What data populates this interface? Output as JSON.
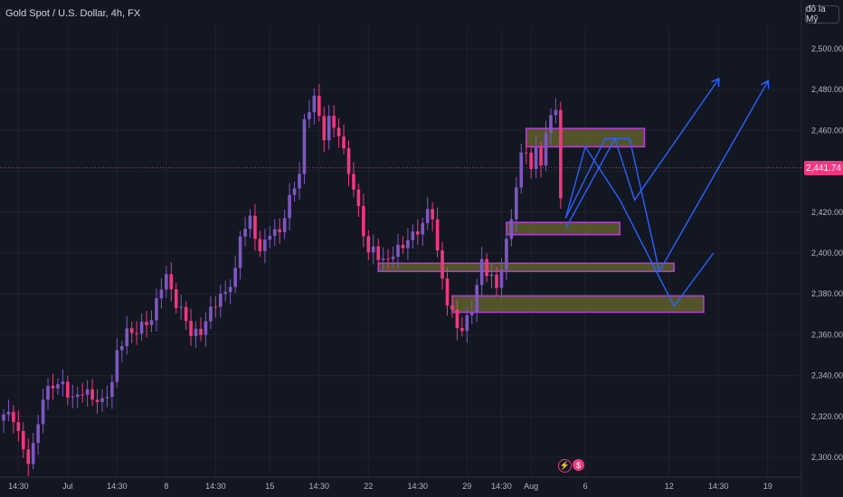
{
  "header": {
    "symbol_title": "Gold Spot / U.S. Dollar, 4h, FX"
  },
  "currency_button": {
    "label": "đô la Mỹ"
  },
  "current_price": {
    "label": "2,441.74",
    "value": 2441.74,
    "color": "#f23680"
  },
  "events": [
    {
      "icon": "lightning-icon",
      "color": "#f23680"
    },
    {
      "icon": "us-flag-icon",
      "color": "#f23680"
    }
  ],
  "colors": {
    "background": "#131722",
    "bull": "#7e57c2",
    "bear": "#f23680",
    "zone_fill": "#6b6a2e",
    "zone_border": "#b73dd9",
    "projection": "#2962ff",
    "grid": "#1e222d",
    "text": "#b2b5be"
  },
  "chart_data": {
    "type": "candlestick",
    "title": "Gold Spot / U.S. Dollar, 4h, FX",
    "ylim": [
      2295,
      2515
    ],
    "y_ticks": [
      2300,
      2320,
      2340,
      2360,
      2380,
      2400,
      2420,
      2440,
      2460,
      2480,
      2500
    ],
    "y_tick_labels": [
      "2,300.00",
      "2,320.00",
      "2,340.00",
      "2,360.00",
      "2,380.00",
      "2,400.00",
      "2,420.00",
      "2,440.00",
      "2,460.00",
      "2,480.00",
      "2,500.00"
    ],
    "x_ticks": [
      {
        "label": "14:30",
        "index": 3
      },
      {
        "label": "Jul",
        "index": 13
      },
      {
        "label": "14:30",
        "index": 23
      },
      {
        "label": "8",
        "index": 33
      },
      {
        "label": "14:30",
        "index": 43
      },
      {
        "label": "15",
        "index": 54
      },
      {
        "label": "14:30",
        "index": 64
      },
      {
        "label": "22",
        "index": 74
      },
      {
        "label": "14:30",
        "index": 84
      },
      {
        "label": "29",
        "index": 94
      },
      {
        "label": "14:30",
        "index": 101
      },
      {
        "label": "Aug",
        "index": 107
      },
      {
        "label": "6",
        "index": 118
      },
      {
        "label": "12",
        "index": 135
      },
      {
        "label": "14:30",
        "index": 145
      },
      {
        "label": "19",
        "index": 155
      }
    ],
    "candles_count": 114,
    "close_path": [
      {
        "i": 0,
        "p": 2321
      },
      {
        "i": 2,
        "p": 2318
      },
      {
        "i": 4,
        "p": 2304
      },
      {
        "i": 5,
        "p": 2300
      },
      {
        "i": 6,
        "p": 2306
      },
      {
        "i": 8,
        "p": 2328
      },
      {
        "i": 10,
        "p": 2335
      },
      {
        "i": 12,
        "p": 2337
      },
      {
        "i": 14,
        "p": 2328
      },
      {
        "i": 16,
        "p": 2331
      },
      {
        "i": 18,
        "p": 2330
      },
      {
        "i": 20,
        "p": 2328
      },
      {
        "i": 22,
        "p": 2335
      },
      {
        "i": 23,
        "p": 2350
      },
      {
        "i": 25,
        "p": 2362
      },
      {
        "i": 27,
        "p": 2363
      },
      {
        "i": 30,
        "p": 2366
      },
      {
        "i": 32,
        "p": 2385
      },
      {
        "i": 33,
        "p": 2390
      },
      {
        "i": 35,
        "p": 2375
      },
      {
        "i": 37,
        "p": 2366
      },
      {
        "i": 38,
        "p": 2360
      },
      {
        "i": 40,
        "p": 2363
      },
      {
        "i": 42,
        "p": 2372
      },
      {
        "i": 45,
        "p": 2380
      },
      {
        "i": 47,
        "p": 2392
      },
      {
        "i": 48,
        "p": 2410
      },
      {
        "i": 50,
        "p": 2415
      },
      {
        "i": 52,
        "p": 2400
      },
      {
        "i": 54,
        "p": 2412
      },
      {
        "i": 56,
        "p": 2410
      },
      {
        "i": 58,
        "p": 2425
      },
      {
        "i": 60,
        "p": 2440
      },
      {
        "i": 61,
        "p": 2465
      },
      {
        "i": 62,
        "p": 2472
      },
      {
        "i": 63,
        "p": 2476
      },
      {
        "i": 64,
        "p": 2465
      },
      {
        "i": 65,
        "p": 2456
      },
      {
        "i": 66,
        "p": 2465
      },
      {
        "i": 68,
        "p": 2460
      },
      {
        "i": 70,
        "p": 2440
      },
      {
        "i": 72,
        "p": 2420
      },
      {
        "i": 73,
        "p": 2410
      },
      {
        "i": 74,
        "p": 2400
      },
      {
        "i": 75,
        "p": 2404
      },
      {
        "i": 77,
        "p": 2395
      },
      {
        "i": 79,
        "p": 2398
      },
      {
        "i": 81,
        "p": 2405
      },
      {
        "i": 83,
        "p": 2410
      },
      {
        "i": 85,
        "p": 2412
      },
      {
        "i": 86,
        "p": 2420
      },
      {
        "i": 87,
        "p": 2418
      },
      {
        "i": 88,
        "p": 2400
      },
      {
        "i": 89,
        "p": 2390
      },
      {
        "i": 90,
        "p": 2376
      },
      {
        "i": 92,
        "p": 2364
      },
      {
        "i": 93,
        "p": 2360
      },
      {
        "i": 94,
        "p": 2368
      },
      {
        "i": 95,
        "p": 2374
      },
      {
        "i": 96,
        "p": 2384
      },
      {
        "i": 97,
        "p": 2398
      },
      {
        "i": 98,
        "p": 2390
      },
      {
        "i": 99,
        "p": 2386
      },
      {
        "i": 100,
        "p": 2383
      },
      {
        "i": 101,
        "p": 2392
      },
      {
        "i": 102,
        "p": 2406
      },
      {
        "i": 103,
        "p": 2420
      },
      {
        "i": 104,
        "p": 2432
      },
      {
        "i": 105,
        "p": 2448
      },
      {
        "i": 106,
        "p": 2450
      },
      {
        "i": 107,
        "p": 2438
      },
      {
        "i": 108,
        "p": 2452
      },
      {
        "i": 109,
        "p": 2445
      },
      {
        "i": 110,
        "p": 2458
      },
      {
        "i": 111,
        "p": 2470
      },
      {
        "i": 112,
        "p": 2441
      },
      {
        "i": 113,
        "p": 2426
      }
    ],
    "zones": [
      {
        "i0": 106,
        "i1": 130,
        "low": 2452,
        "high": 2461
      },
      {
        "i0": 102,
        "i1": 125,
        "low": 2409,
        "high": 2415
      },
      {
        "i0": 76,
        "i1": 136,
        "low": 2391,
        "high": 2395
      },
      {
        "i0": 91,
        "i1": 142,
        "low": 2371,
        "high": 2379
      }
    ],
    "projections": [
      {
        "points": [
          {
            "i": 114,
            "p": 2412
          },
          {
            "i": 124,
            "p": 2456
          },
          {
            "i": 128,
            "p": 2426
          },
          {
            "i": 145,
            "p": 2485
          }
        ],
        "arrow": true
      },
      {
        "points": [
          {
            "i": 114,
            "p": 2417
          },
          {
            "i": 122,
            "p": 2456
          },
          {
            "i": 127,
            "p": 2456
          },
          {
            "i": 133,
            "p": 2391
          },
          {
            "i": 155,
            "p": 2484
          }
        ],
        "arrow": true
      },
      {
        "points": [
          {
            "i": 114,
            "p": 2417
          },
          {
            "i": 118,
            "p": 2452
          },
          {
            "i": 125,
            "p": 2426
          },
          {
            "i": 136,
            "p": 2374
          },
          {
            "i": 144,
            "p": 2400
          }
        ],
        "arrow": false
      }
    ],
    "last_price_line": 2441.74,
    "grid": true,
    "legend": "none"
  }
}
